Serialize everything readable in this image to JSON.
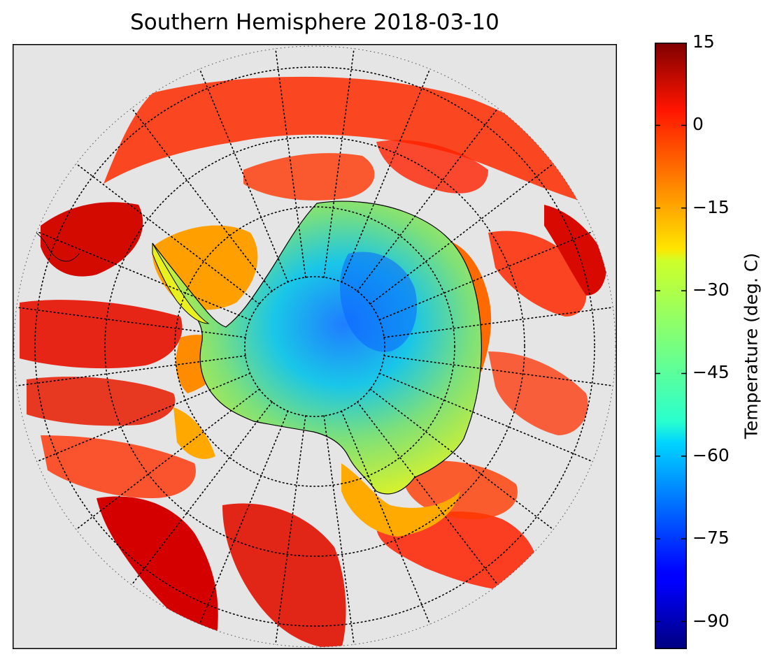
{
  "title": "Southern Hemisphere 2018-03-10",
  "colorbar": {
    "label": "Temperature (deg. C)",
    "min": -95,
    "max": 15,
    "ticks": [
      "15",
      "0",
      "−15",
      "−30",
      "−45",
      "−60",
      "−75",
      "−90"
    ],
    "tick_values": [
      15,
      0,
      -15,
      -30,
      -45,
      -60,
      -75,
      -90
    ],
    "colormap": "jet"
  },
  "map": {
    "projection": "south-polar-stereographic",
    "background_color": "#e5e5e5",
    "graticule": "dotted",
    "meridians_every_deg": 15,
    "parallels_count": 4
  }
}
